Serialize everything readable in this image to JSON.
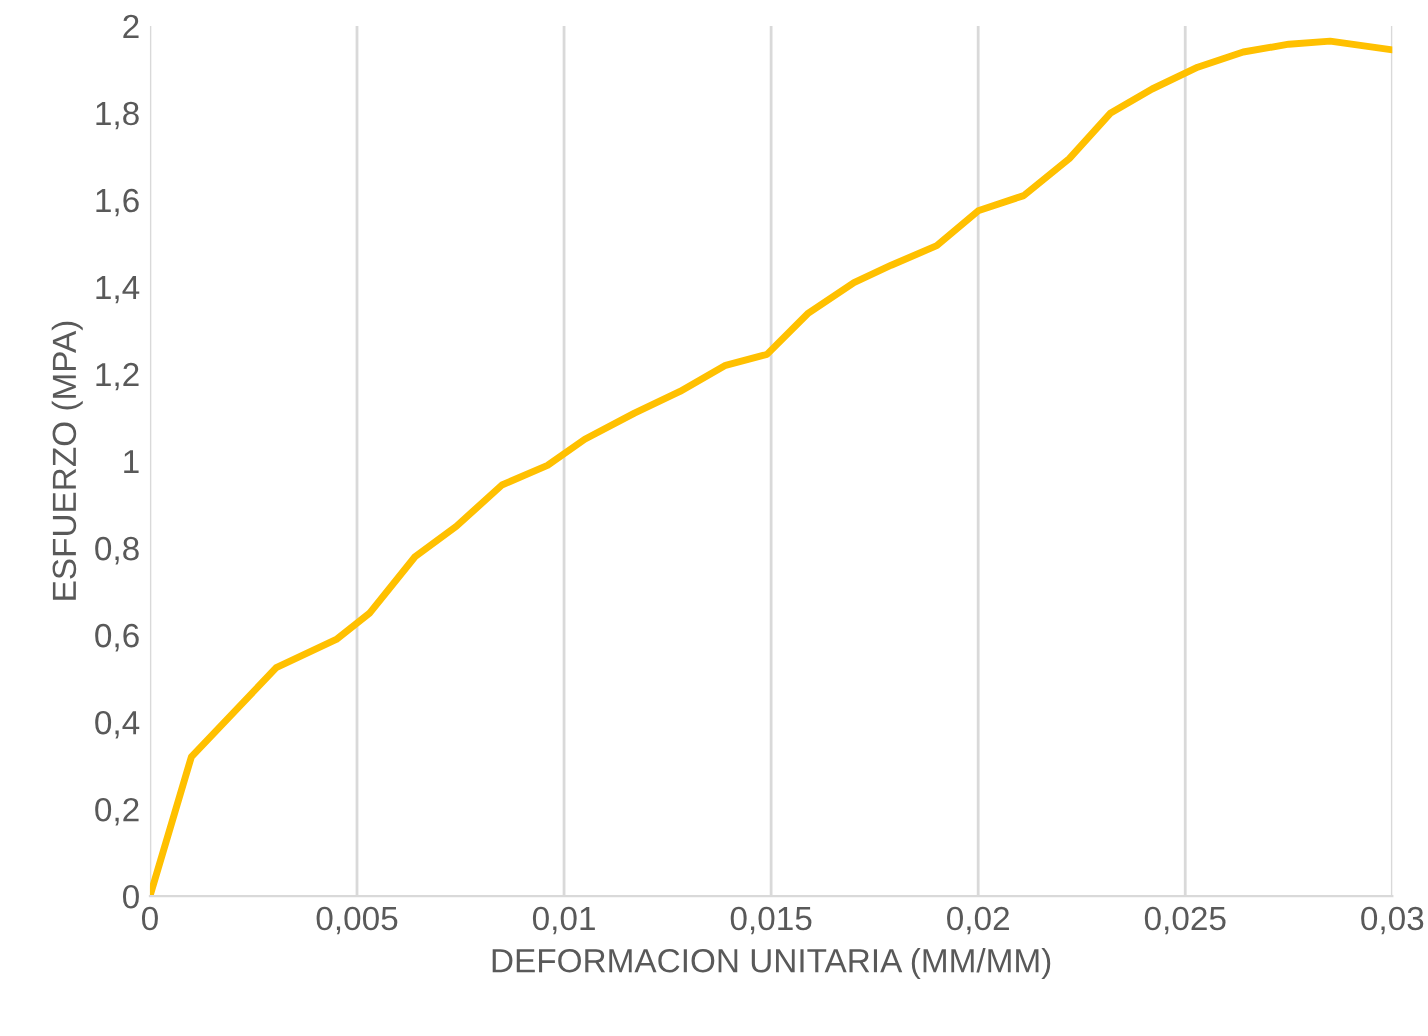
{
  "chart_data": {
    "type": "line",
    "xlabel": "DEFORMACION UNITARIA (MM/MM)",
    "ylabel": "ESFUERZO (MPA)",
    "x": [
      0,
      0.001,
      0.00305,
      0.0045,
      0.0053,
      0.0064,
      0.0074,
      0.0085,
      0.0096,
      0.0105,
      0.0117,
      0.0128,
      0.0139,
      0.0149,
      0.0159,
      0.017,
      0.0179,
      0.019,
      0.02,
      0.0211,
      0.0222,
      0.0232,
      0.0242,
      0.0253,
      0.0264,
      0.0275,
      0.0285,
      0.03
    ],
    "series": [
      {
        "color": "#ffc000",
        "values": [
          0,
          0.32,
          0.525,
          0.59,
          0.65,
          0.78,
          0.85,
          0.945,
          0.99,
          1.05,
          1.11,
          1.16,
          1.22,
          1.245,
          1.34,
          1.41,
          1.45,
          1.495,
          1.575,
          1.61,
          1.695,
          1.8,
          1.855,
          1.905,
          1.94,
          1.958,
          1.965,
          1.945
        ]
      }
    ],
    "xlim": [
      0,
      0.03
    ],
    "ylim": [
      0,
      2
    ],
    "xticks": [
      0,
      {
        "value": 0.005,
        "label": "0,005"
      },
      {
        "value": 0.01,
        "label": "0,01"
      },
      {
        "value": 0.015,
        "label": "0,015"
      },
      {
        "value": 0.02,
        "label": "0,02"
      },
      {
        "value": 0.025,
        "label": "0,025"
      },
      {
        "value": 0.03,
        "label": "0,03"
      }
    ],
    "yticks": [
      0,
      {
        "value": 0.2,
        "label": "0,2"
      },
      {
        "value": 0.4,
        "label": "0,4"
      },
      {
        "value": 0.6,
        "label": "0,6"
      },
      {
        "value": 0.8,
        "label": "0,8"
      },
      1,
      {
        "value": 1.2,
        "label": "1,2"
      },
      {
        "value": 1.4,
        "label": "1,4"
      },
      {
        "value": 1.6,
        "label": "1,6"
      },
      {
        "value": 1.8,
        "label": "1,8"
      },
      2
    ],
    "grid": "x",
    "line_style": "solid",
    "marker": "none"
  }
}
